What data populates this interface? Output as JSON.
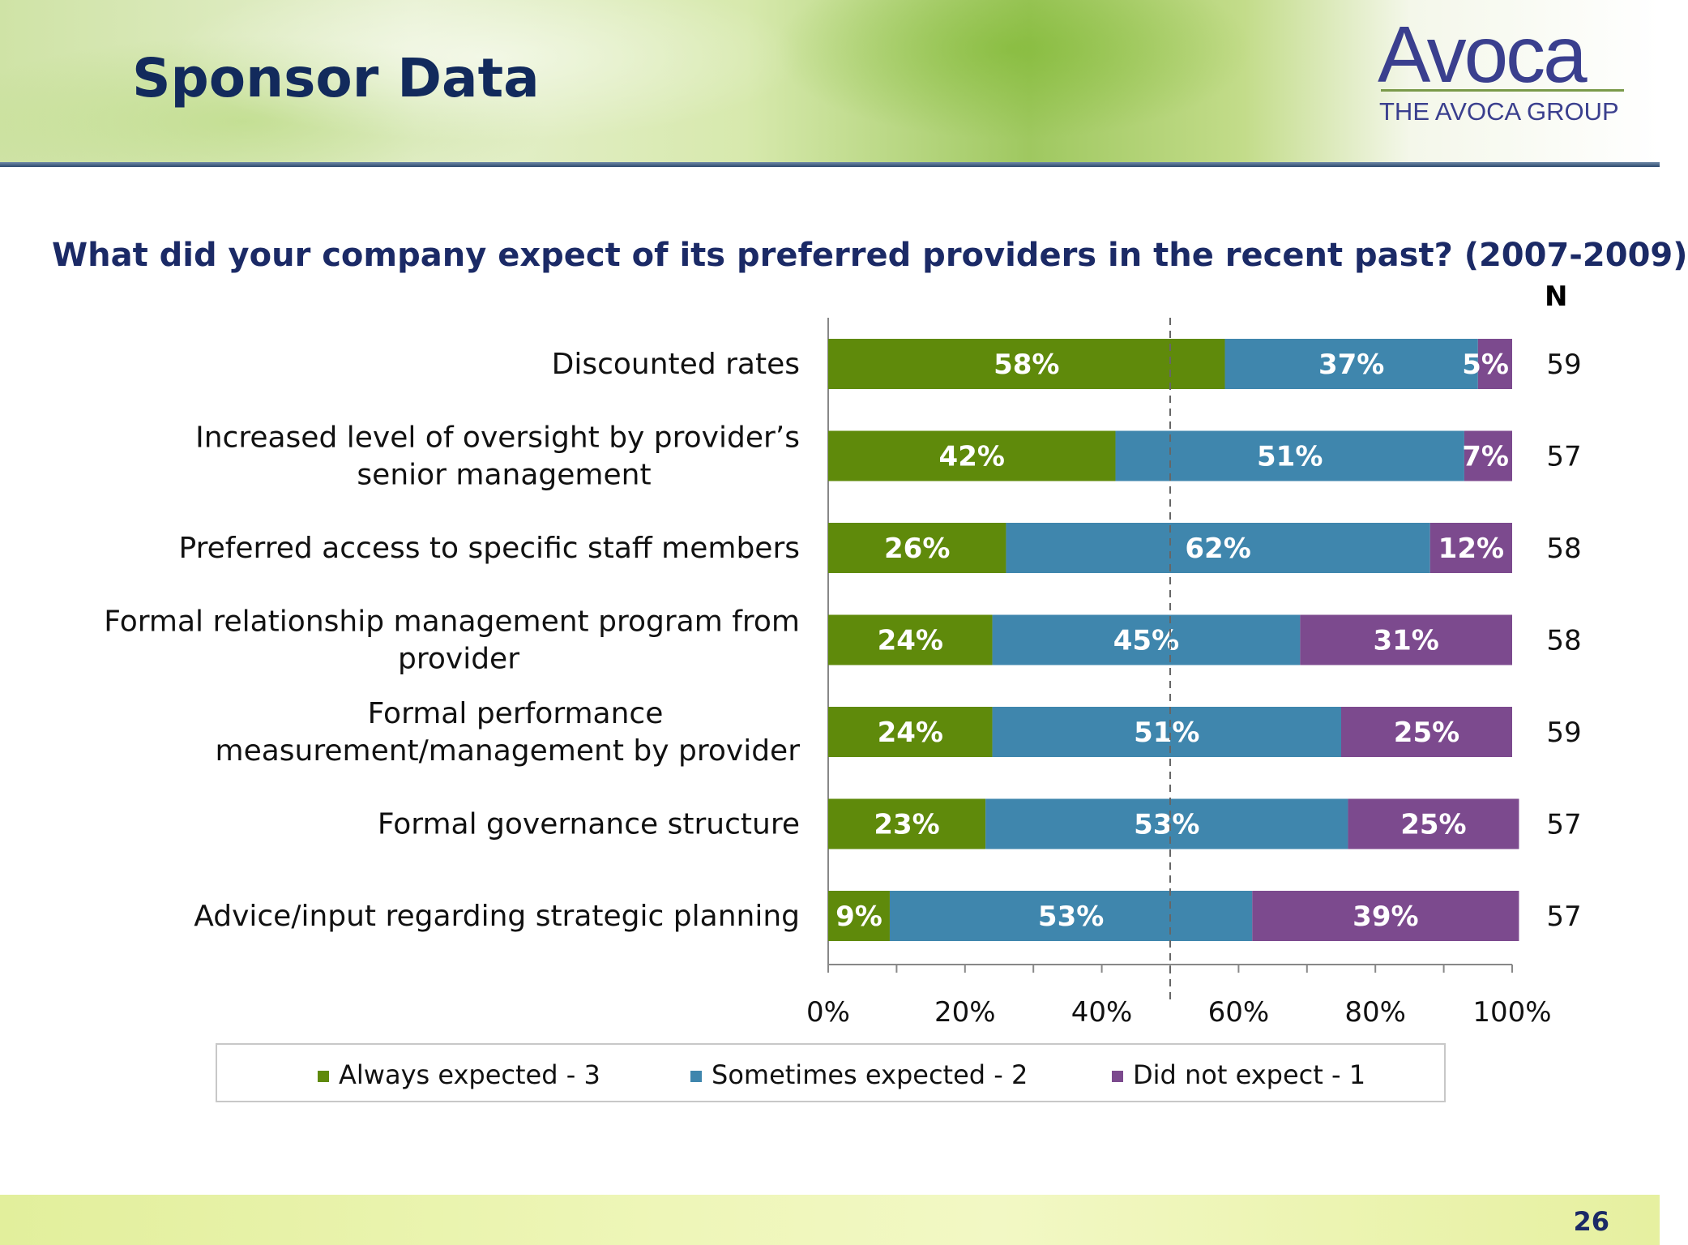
{
  "header": {
    "title": "Sponsor Data",
    "logo_text": "Avoca",
    "logo_subtitle": "THE AVOCA GROUP"
  },
  "question": "What did your company expect of its preferred providers in the recent past? (2007-2009)",
  "n_header": "N",
  "page_number": "26",
  "colors": {
    "always": "#5f8a0b",
    "sometimes": "#3f86ad",
    "did_not": "#7c4a8e",
    "title": "#122a5c"
  },
  "chart_data": {
    "type": "bar",
    "orientation": "horizontal",
    "stacked": true,
    "categories": [
      "Discounted rates",
      "Increased level of oversight by provider’s senior management",
      "Preferred access to specific staff members",
      "Formal relationship management program from provider",
      "Formal performance measurement/management by provider",
      "Formal governance structure",
      "Advice/input regarding strategic planning"
    ],
    "category_lines": [
      [
        "Discounted rates"
      ],
      [
        "Increased level of oversight by provider’s",
        "senior management"
      ],
      [
        "Preferred access to specific staff members"
      ],
      [
        "Formal relationship  management program from",
        "provider"
      ],
      [
        "Formal performance",
        "measurement/management by provider"
      ],
      [
        "Formal governance structure"
      ],
      [
        "Advice/input regarding strategic planning"
      ]
    ],
    "series": [
      {
        "name": "Always expected - 3",
        "values": [
          58,
          42,
          26,
          24,
          24,
          23,
          9
        ],
        "labels": [
          "58%",
          "42%",
          "26%",
          "24%",
          "24%",
          "23%",
          "9%"
        ]
      },
      {
        "name": "Sometimes expected - 2",
        "values": [
          37,
          51,
          62,
          45,
          51,
          53,
          53
        ],
        "labels": [
          "37%",
          "51%",
          "62%",
          "45%",
          "51%",
          "53%",
          "53%"
        ]
      },
      {
        "name": "Did not expect - 1",
        "values": [
          5,
          7,
          12,
          31,
          25,
          25,
          39
        ],
        "labels": [
          "5%",
          "7%",
          "12%",
          "31%",
          "25%",
          "25%",
          "39%"
        ]
      }
    ],
    "n_values": [
      "59",
      "57",
      "58",
      "58",
      "59",
      "57",
      "57"
    ],
    "xlim": [
      0,
      100
    ],
    "x_ticks": [
      0,
      20,
      40,
      60,
      80,
      100
    ],
    "x_tick_labels": [
      "0%",
      "20%",
      "40%",
      "60%",
      "80%",
      "100%"
    ],
    "reference_line": 50,
    "legend_position": "bottom"
  }
}
